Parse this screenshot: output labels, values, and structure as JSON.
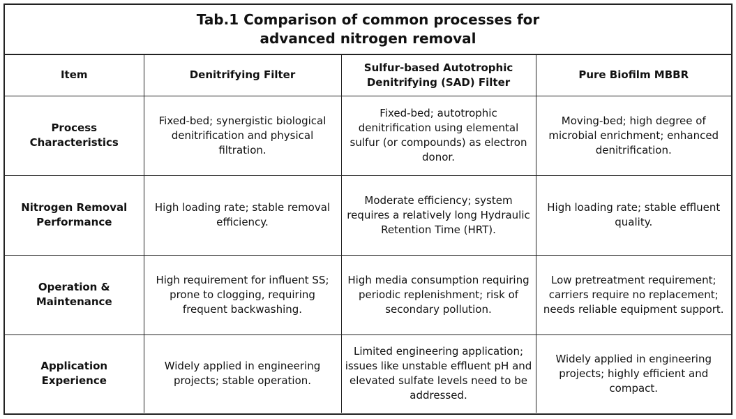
{
  "title": {
    "line1": "Tab.1 Comparison of common processes for",
    "line2": "advanced nitrogen removal"
  },
  "headers": [
    "Item",
    "Denitrifying Filter",
    "Sulfur-based Autotrophic Denitrifying (SAD) Filter",
    "Pure Biofilm MBBR"
  ],
  "rows": [
    {
      "item": "Process Characteristics",
      "cells": [
        "Fixed-bed; synergistic biological denitrification and physical filtration.",
        "Fixed-bed; autotrophic denitrification using elemental sulfur (or compounds) as electron donor.",
        "Moving-bed; high degree of microbial enrichment; enhanced denitrification."
      ]
    },
    {
      "item": "Nitrogen Removal Performance",
      "cells": [
        "High loading rate; stable removal efficiency.",
        "Moderate efficiency; system requires a relatively long Hydraulic Retention Time (HRT).",
        "High loading rate; stable effluent quality."
      ]
    },
    {
      "item": "Operation & Maintenance",
      "cells": [
        "High requirement for influent SS; prone to clogging, requiring frequent backwashing.",
        "High media consumption requiring periodic replenishment; risk of secondary pollution.",
        "Low pretreatment requirement; carriers require no replacement; needs reliable equipment support."
      ]
    },
    {
      "item": "Application Experience",
      "cells": [
        "Widely applied in engineering projects; stable operation.",
        "Limited engineering application; issues like unstable effluent pH and elevated sulfate levels need to be addressed.",
        "Widely applied in engineering projects; highly efficient and compact."
      ]
    }
  ]
}
